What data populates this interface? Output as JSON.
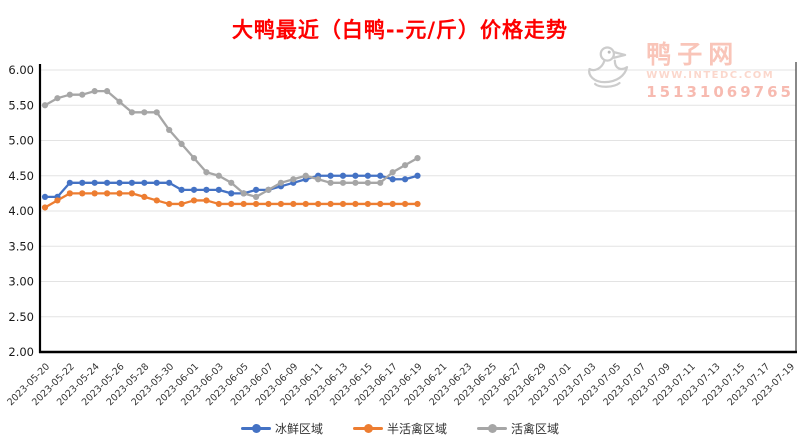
{
  "title": "大鸭最近（白鸭--元/斤）价格走势",
  "logo": {
    "site_name": "鸭子网",
    "url_text": "WWW.INTEDC.COM",
    "phone": "15131069765"
  },
  "palette": {
    "title_red": "#fe0000",
    "grid": "#e3e3e3",
    "axis": "#000000",
    "tick_text": "#333333",
    "watermark_gray": "#cccccc"
  },
  "chart_data": {
    "type": "line",
    "title": "大鸭最近（白鸭--元/斤）价格走势",
    "xlabel": "",
    "ylabel": "",
    "ylim": [
      2.0,
      6.0
    ],
    "y_tick_labels": [
      "2.00",
      "2.50",
      "3.00",
      "3.50",
      "4.00",
      "4.50",
      "5.00",
      "5.50",
      "6.00"
    ],
    "grid": true,
    "legend_position": "bottom",
    "x_axis": {
      "start": "2023-05-20",
      "end": "2023-07-19",
      "total_days": 61,
      "tick_labels": [
        "2023-05-20",
        "2023-05-22",
        "2023-05-24",
        "2023-05-26",
        "2023-05-28",
        "2023-05-30",
        "2023-06-01",
        "2023-06-03",
        "2023-06-05",
        "2023-06-07",
        "2023-06-09",
        "2023-06-11",
        "2023-06-13",
        "2023-06-15",
        "2023-06-17",
        "2023-06-19",
        "2023-06-21",
        "2023-06-23",
        "2023-06-25",
        "2023-06-27",
        "2023-06-29",
        "2023-07-01",
        "2023-07-03",
        "2023-07-05",
        "2023-07-07",
        "2023-07-09",
        "2023-07-11",
        "2023-07-13",
        "2023-07-15",
        "2023-07-17",
        "2023-07-19"
      ]
    },
    "data_dates": [
      "2023-05-20",
      "2023-05-21",
      "2023-05-22",
      "2023-05-23",
      "2023-05-24",
      "2023-05-25",
      "2023-05-26",
      "2023-05-27",
      "2023-05-28",
      "2023-05-29",
      "2023-05-30",
      "2023-05-31",
      "2023-06-01",
      "2023-06-02",
      "2023-06-03",
      "2023-06-04",
      "2023-06-05",
      "2023-06-06",
      "2023-06-07",
      "2023-06-08",
      "2023-06-09",
      "2023-06-10",
      "2023-06-11",
      "2023-06-12",
      "2023-06-13",
      "2023-06-14",
      "2023-06-15",
      "2023-06-16",
      "2023-06-17",
      "2023-06-18",
      "2023-06-19"
    ],
    "series": [
      {
        "name": "冰鲜区域",
        "color": "#4472c4",
        "values": [
          4.2,
          4.2,
          4.4,
          4.4,
          4.4,
          4.4,
          4.4,
          4.4,
          4.4,
          4.4,
          4.4,
          4.3,
          4.3,
          4.3,
          4.3,
          4.25,
          4.25,
          4.3,
          4.3,
          4.35,
          4.4,
          4.45,
          4.5,
          4.5,
          4.5,
          4.5,
          4.5,
          4.5,
          4.45,
          4.45,
          4.5
        ]
      },
      {
        "name": "半活禽区域",
        "color": "#ed7d31",
        "values": [
          4.05,
          4.15,
          4.25,
          4.25,
          4.25,
          4.25,
          4.25,
          4.25,
          4.2,
          4.15,
          4.1,
          4.1,
          4.15,
          4.15,
          4.1,
          4.1,
          4.1,
          4.1,
          4.1,
          4.1,
          4.1,
          4.1,
          4.1,
          4.1,
          4.1,
          4.1,
          4.1,
          4.1,
          4.1,
          4.1,
          4.1
        ]
      },
      {
        "name": "活禽区域",
        "color": "#a6a6a6",
        "values": [
          5.5,
          5.6,
          5.65,
          5.65,
          5.7,
          5.7,
          5.55,
          5.4,
          5.4,
          5.4,
          5.15,
          4.95,
          4.75,
          4.55,
          4.5,
          4.4,
          4.25,
          4.2,
          4.3,
          4.4,
          4.45,
          4.5,
          4.45,
          4.4,
          4.4,
          4.4,
          4.4,
          4.4,
          4.55,
          4.65,
          4.75
        ]
      }
    ]
  }
}
